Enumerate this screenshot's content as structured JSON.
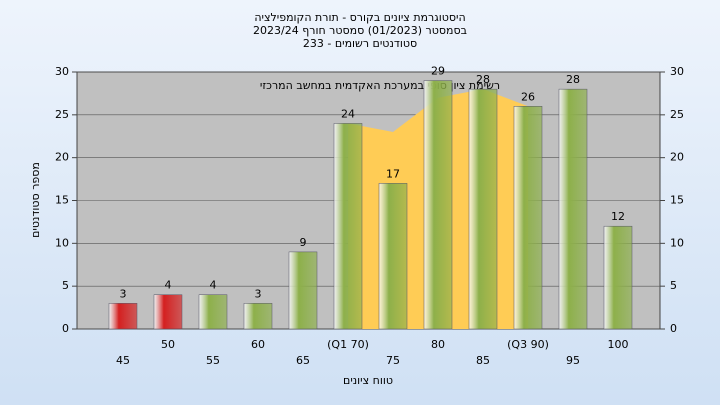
{
  "chart_data": {
    "type": "bar",
    "title": [
      "היסטוגרמת ציונים בקורס - תורת הקומפילציה",
      "בסמסטר  (01/2023)  סמסטר חורף  2023/24",
      "סטודנטים רשומים - 233"
    ],
    "annotation": "רשימת ציון סופי במערכת האקדמית במחשב המרכזי",
    "y_label": "מספר סטודנטים",
    "x_label": "טווח ציונים",
    "categories": [
      "45",
      "50",
      "55",
      "60",
      "65",
      "(Q1 70)",
      "75",
      "80",
      "85",
      "(Q3 90)",
      "95",
      "100"
    ],
    "series": [
      {
        "values": [
          3,
          4,
          4,
          3,
          9,
          24,
          17,
          29,
          28,
          26,
          28,
          12
        ],
        "colors": [
          "#d42020",
          "#d42020",
          "#8db04a",
          "#8db04a",
          "#8db04a",
          "#8db04a",
          "#8db04a",
          "#8db04a",
          "#8db04a",
          "#8db04a",
          "#8db04a",
          "#8db04a"
        ]
      },
      {
        "type": "area",
        "color": "#ffcc55",
        "values": [
          null,
          null,
          null,
          null,
          null,
          24,
          23,
          27,
          28,
          26,
          null,
          null
        ]
      }
    ],
    "ylim": [
      0,
      30
    ],
    "yticks": [
      0,
      5,
      10,
      15,
      20,
      25,
      30
    ],
    "y2lim": [
      0,
      30
    ],
    "y2ticks": [
      0,
      5,
      10,
      15,
      20,
      25,
      30
    ],
    "grid": true
  }
}
